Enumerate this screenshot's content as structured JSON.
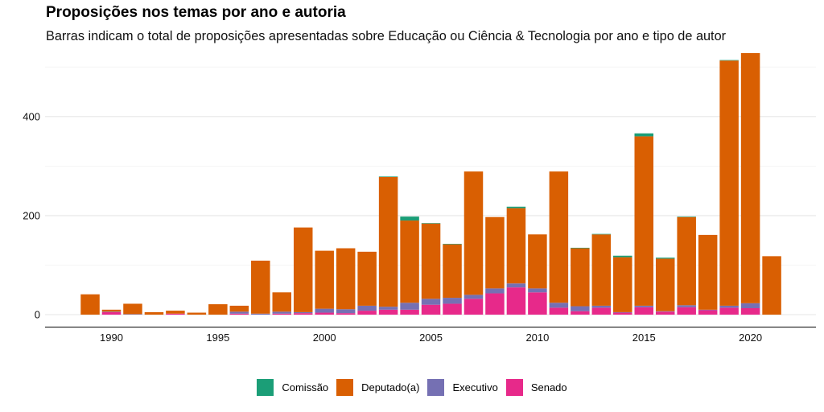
{
  "chart_data": {
    "type": "bar",
    "stacked": true,
    "title": "Proposições nos temas por ano e autoria",
    "subtitle": "Barras indicam o total de proposições apresentadas sobre Educação ou Ciência & Tecnologia por ano e tipo de autor",
    "xlabel": "",
    "ylabel": "",
    "ylim": [
      0,
      540
    ],
    "xlim": [
      1987.8,
      2022.3
    ],
    "yticks": [
      0,
      200,
      400
    ],
    "yticks_minor": [
      100,
      300,
      500
    ],
    "xticks": [
      1990,
      1995,
      2000,
      2005,
      2010,
      2015,
      2020
    ],
    "grid": true,
    "legend_position": "bottom",
    "categories": [
      1989,
      1990,
      1991,
      1992,
      1993,
      1994,
      1995,
      1996,
      1997,
      1998,
      1999,
      2000,
      2001,
      2002,
      2003,
      2004,
      2005,
      2006,
      2007,
      2008,
      2009,
      2010,
      2011,
      2012,
      2013,
      2014,
      2015,
      2016,
      2017,
      2018,
      2019,
      2020,
      2021
    ],
    "series": [
      {
        "name": "Senado",
        "color": "#E7298A",
        "values": [
          0,
          5,
          0,
          0,
          2,
          0,
          0,
          2,
          0,
          2,
          3,
          4,
          3,
          8,
          10,
          10,
          20,
          22,
          32,
          43,
          55,
          45,
          14,
          7,
          14,
          4,
          15,
          6,
          15,
          9,
          14,
          13,
          0
        ]
      },
      {
        "name": "Executivo",
        "color": "#7570B3",
        "values": [
          0,
          1,
          1,
          0,
          0,
          0,
          0,
          4,
          2,
          4,
          2,
          8,
          8,
          10,
          6,
          14,
          12,
          12,
          8,
          10,
          8,
          8,
          10,
          10,
          4,
          1,
          3,
          1,
          4,
          1,
          4,
          10,
          0
        ]
      },
      {
        "name": "Deputado(a)",
        "color": "#D95F02",
        "values": [
          41,
          4,
          21,
          5,
          6,
          4,
          21,
          12,
          107,
          39,
          171,
          117,
          123,
          109,
          262,
          166,
          152,
          108,
          249,
          144,
          152,
          109,
          265,
          117,
          144,
          111,
          342,
          106,
          178,
          151,
          495,
          505,
          118
        ]
      },
      {
        "name": "Comissão",
        "color": "#1B9E77",
        "values": [
          0,
          0,
          0,
          0,
          0,
          0,
          0,
          0,
          0,
          0,
          0,
          0,
          0,
          0,
          1,
          8,
          1,
          1,
          0,
          0,
          3,
          0,
          0,
          1,
          1,
          3,
          6,
          2,
          1,
          0,
          1,
          0,
          0
        ]
      }
    ],
    "legend_order": [
      "Comissão",
      "Deputado(a)",
      "Executivo",
      "Senado"
    ]
  }
}
